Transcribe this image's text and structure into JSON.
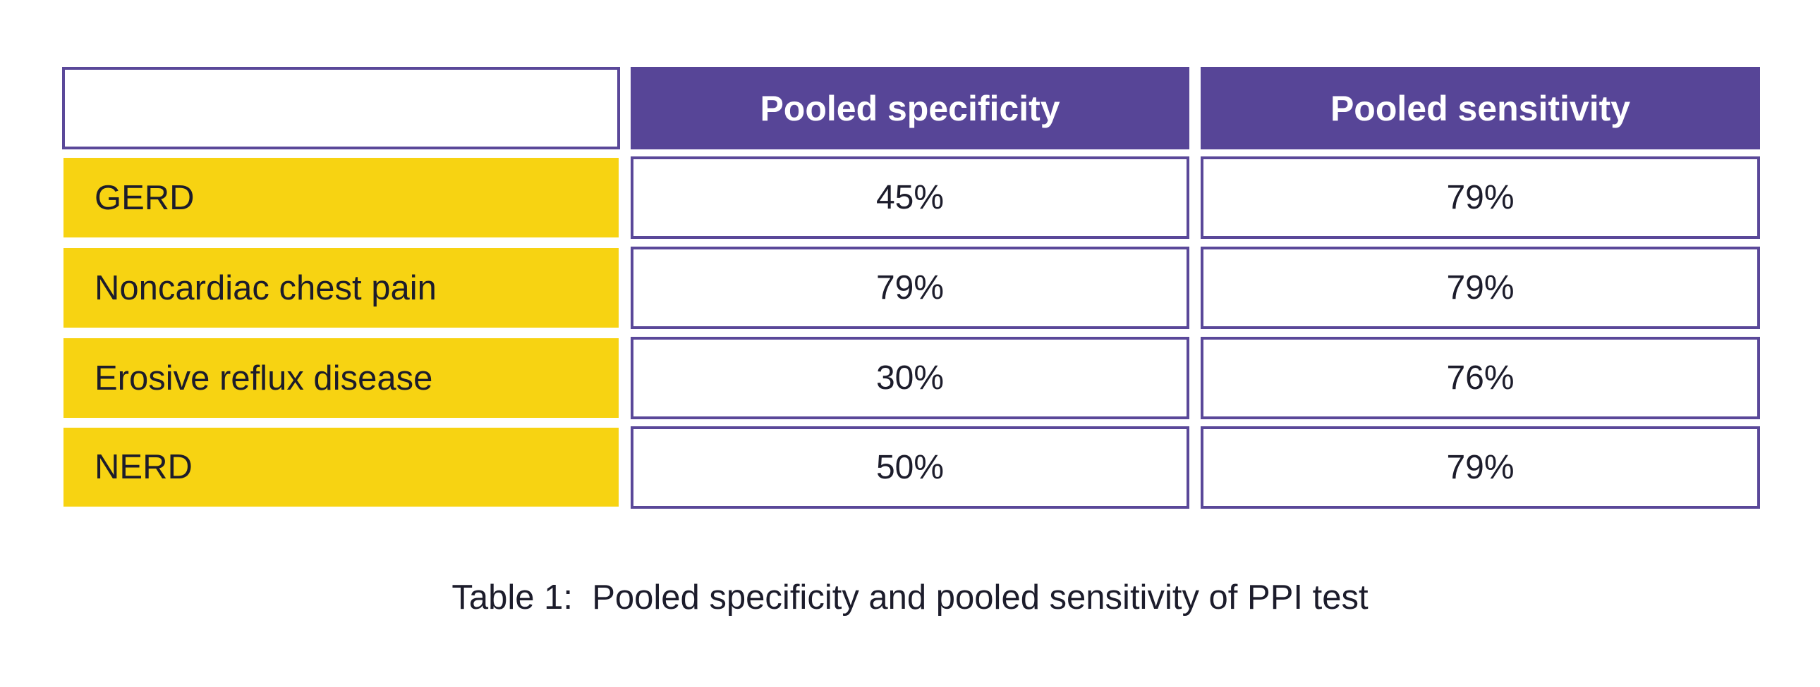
{
  "chart_data": {
    "type": "table",
    "columns": [
      "Pooled specificity",
      "Pooled sensitivity"
    ],
    "rows": [
      {
        "label": "GERD",
        "values": [
          "45%",
          "79%"
        ]
      },
      {
        "label": "Noncardiac chest pain",
        "values": [
          "79%",
          "79%"
        ]
      },
      {
        "label": "Erosive reflux disease",
        "values": [
          "30%",
          "76%"
        ]
      },
      {
        "label": "NERD",
        "values": [
          "50%",
          "79%"
        ]
      }
    ],
    "caption": "Table 1:  Pooled specificity and pooled sensitivity of PPI test"
  },
  "colors": {
    "header_purple": "#574597",
    "row_yellow": "#f7d312",
    "border_purple": "#5a4899"
  }
}
